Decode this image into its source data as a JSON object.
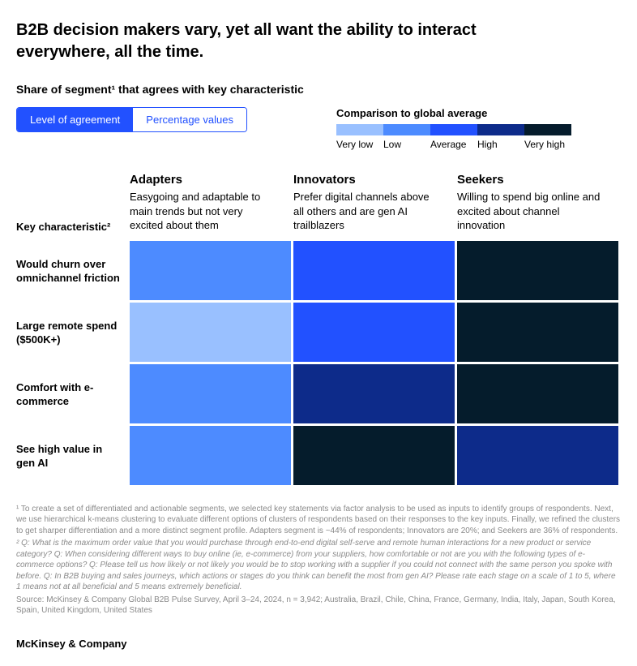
{
  "title": "B2B decision makers vary, yet all want the ability to interact everywhere, all the time.",
  "subtitle": "Share of segment¹ that agrees with key characteristic",
  "toggle": {
    "left": "Level of agreement",
    "right": "Percentage values"
  },
  "legend": {
    "title": "Comparison to global average",
    "items": [
      {
        "label": "Very low",
        "color": "#99c0ff"
      },
      {
        "label": "Low",
        "color": "#4d8bff"
      },
      {
        "label": "Average",
        "color": "#2251ff"
      },
      {
        "label": "High",
        "color": "#0d2b8a"
      },
      {
        "label": "Very high",
        "color": "#051c2c"
      }
    ]
  },
  "key_char_label": "Key characteristic²",
  "segments": [
    {
      "name": "Adapters",
      "desc": "Easygoing and adaptable to main trends but not very excited about them"
    },
    {
      "name": "Innovators",
      "desc": "Prefer digital channels above all others and are gen AI trailblazers"
    },
    {
      "name": "Seekers",
      "desc": "Willing to spend big online and excited about channel innovation"
    }
  ],
  "rows": [
    {
      "label": "Would churn over omnichannel friction",
      "cells": [
        {
          "level": 1
        },
        {
          "level": 2
        },
        {
          "level": 4
        }
      ]
    },
    {
      "label": "Large remote spend ($500K+)",
      "cells": [
        {
          "level": 0
        },
        {
          "level": 2
        },
        {
          "level": 4
        }
      ]
    },
    {
      "label": "Comfort with e-commerce",
      "cells": [
        {
          "level": 1
        },
        {
          "level": 3
        },
        {
          "level": 4
        }
      ]
    },
    {
      "label": "See high value in gen AI",
      "cells": [
        {
          "level": 1
        },
        {
          "level": 4
        },
        {
          "level": 3
        }
      ]
    }
  ],
  "footnotes": {
    "f1": "¹ To create a set of differentiated and actionable segments, we selected key statements via factor analysis to be used as inputs to identify groups of respondents. Next, we use hierarchical k-means clustering to evaluate different options of clusters of respondents based on their responses to the key inputs. Finally, we refined the clusters to get sharper differentiation and a more distinct segment profile. Adapters segment is ~44% of respondents; Innovators are 20%; and Seekers are 36% of respondents.",
    "f2": "² Q: What is the maximum order value that you would purchase through end-to-end digital self-serve and remote human interactions for a new product or service category? Q: When considering different ways to buy online (ie, e-commerce) from your suppliers, how comfortable or not are you with the following types of e-commerce options? Q: Please tell us how likely or not likely you would be to stop working with a supplier if you could not connect with the same person you spoke with before. Q: In B2B buying and sales journeys, which actions or stages do you think can benefit the most from gen AI? Please rate each stage on a scale of 1 to 5, where 1 means not at all beneficial and 5 means extremely beneficial.",
    "source": "Source: McKinsey & Company Global B2B Pulse Survey, April 3–24, 2024, n = 3,942; Australia, Brazil, Chile, China, France, Germany, India, Italy, Japan, South Korea, Spain, United Kingdom, United States"
  },
  "brand": "McKinsey & Company"
}
